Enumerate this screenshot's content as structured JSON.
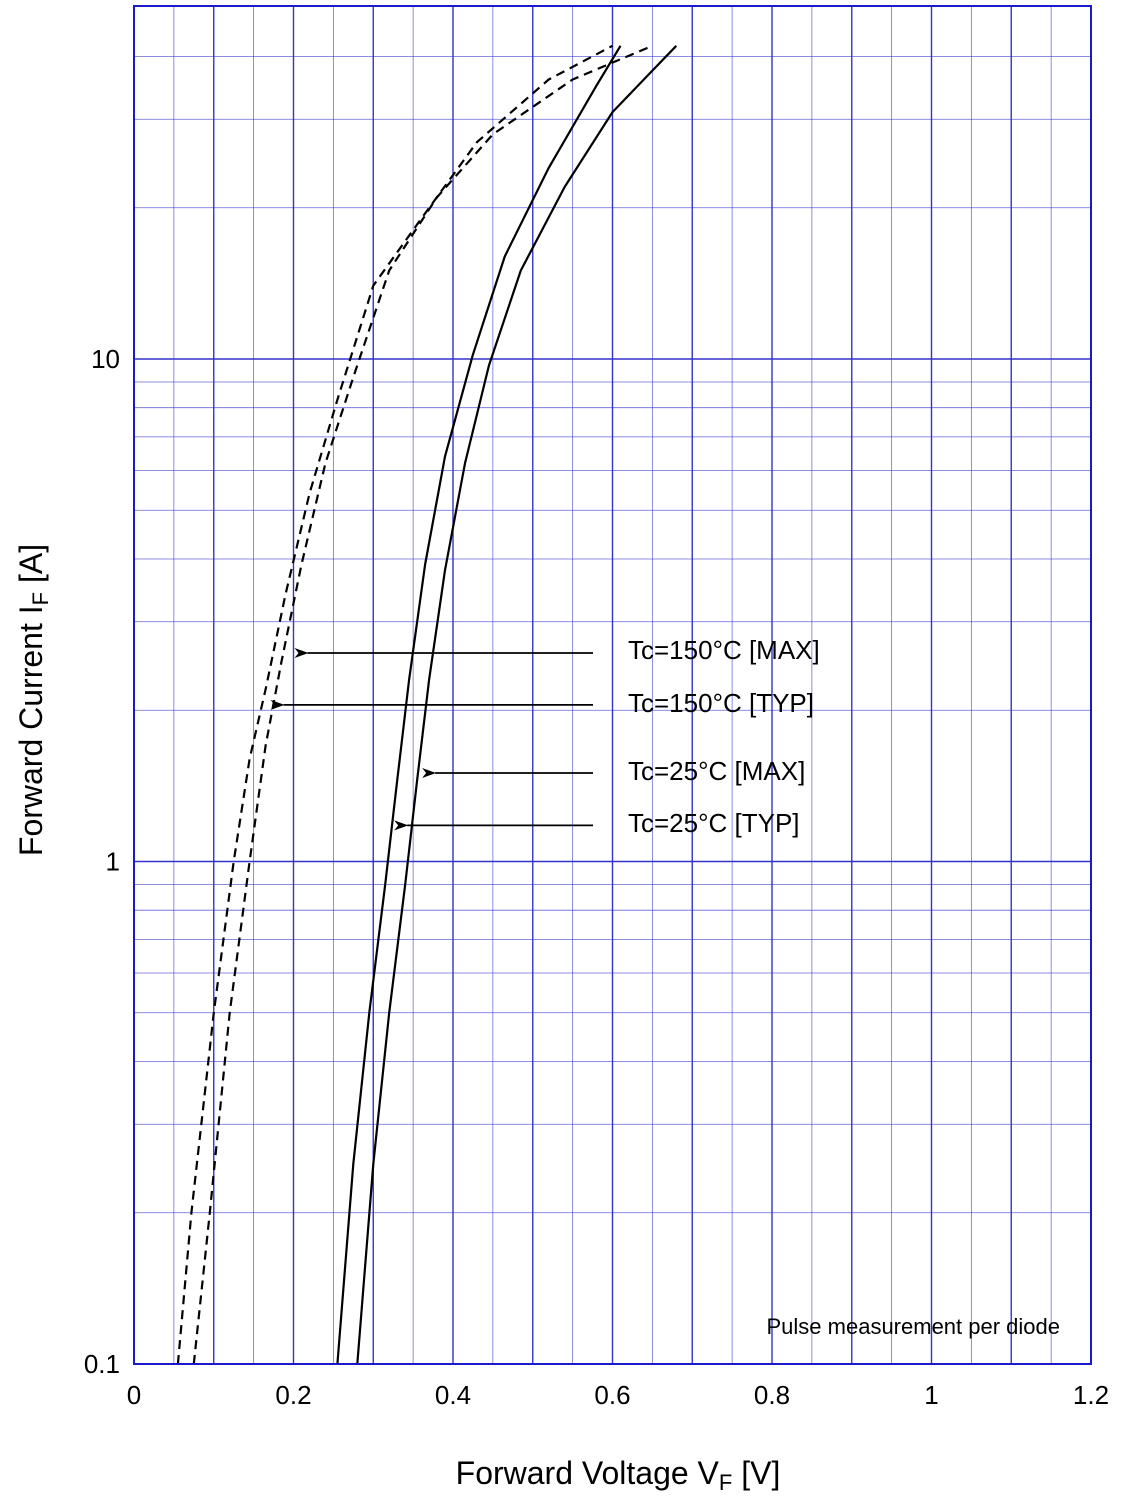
{
  "chart_data": {
    "type": "line",
    "xlabel": "Forward Voltage  V",
    "xlabel_sub": "F",
    "xlabel_unit": " [V]",
    "ylabel": "Forward Current  I",
    "ylabel_sub": "F",
    "ylabel_unit": " [A]",
    "xlim": [
      0,
      1.2
    ],
    "ylim": [
      0.1,
      40
    ],
    "y_scale": "log",
    "grid": true,
    "grid_color": "#3333cc",
    "line_color": "#000000",
    "x_ticks": [
      "0",
      "0.2",
      "0.4",
      "0.6",
      "0.8",
      "1",
      "1.2"
    ],
    "y_ticks": [
      {
        "value": 0.1,
        "label": "0.1"
      },
      {
        "value": 1,
        "label": "1"
      },
      {
        "value": 10,
        "label": "10"
      }
    ],
    "note": "Pulse measurement per diode",
    "series": [
      {
        "name": "Tc=150°C [MAX]",
        "style": "dashed",
        "points": [
          [
            0.075,
            0.1
          ],
          [
            0.095,
            0.2
          ],
          [
            0.12,
            0.5
          ],
          [
            0.145,
            1.0
          ],
          [
            0.165,
            1.7
          ],
          [
            0.185,
            2.5
          ],
          [
            0.21,
            3.9
          ],
          [
            0.24,
            6.2
          ],
          [
            0.275,
            9.2
          ],
          [
            0.32,
            15
          ],
          [
            0.38,
            21
          ],
          [
            0.45,
            28
          ],
          [
            0.55,
            36
          ],
          [
            0.65,
            42
          ]
        ]
      },
      {
        "name": "Tc=150°C [TYP]",
        "style": "dashed",
        "points": [
          [
            0.055,
            0.1
          ],
          [
            0.072,
            0.2
          ],
          [
            0.1,
            0.5
          ],
          [
            0.125,
            1.0
          ],
          [
            0.145,
            1.6
          ],
          [
            0.165,
            2.2
          ],
          [
            0.19,
            3.4
          ],
          [
            0.22,
            5.4
          ],
          [
            0.255,
            8.3
          ],
          [
            0.3,
            14
          ],
          [
            0.36,
            19
          ],
          [
            0.43,
            27
          ],
          [
            0.52,
            36
          ],
          [
            0.6,
            42
          ]
        ]
      },
      {
        "name": "Tc=25°C [MAX]",
        "style": "solid",
        "points": [
          [
            0.28,
            0.1
          ],
          [
            0.3,
            0.25
          ],
          [
            0.32,
            0.5
          ],
          [
            0.34,
            0.9
          ],
          [
            0.355,
            1.45
          ],
          [
            0.37,
            2.3
          ],
          [
            0.39,
            3.8
          ],
          [
            0.415,
            6.2
          ],
          [
            0.445,
            9.7
          ],
          [
            0.485,
            15
          ],
          [
            0.54,
            22
          ],
          [
            0.6,
            31
          ],
          [
            0.68,
            42
          ]
        ]
      },
      {
        "name": "Tc=25°C [TYP]",
        "style": "solid",
        "points": [
          [
            0.255,
            0.1
          ],
          [
            0.275,
            0.25
          ],
          [
            0.295,
            0.5
          ],
          [
            0.315,
            0.9
          ],
          [
            0.33,
            1.45
          ],
          [
            0.345,
            2.3
          ],
          [
            0.365,
            3.9
          ],
          [
            0.39,
            6.4
          ],
          [
            0.425,
            10.2
          ],
          [
            0.465,
            16
          ],
          [
            0.52,
            24
          ],
          [
            0.58,
            35
          ],
          [
            0.61,
            42
          ]
        ]
      }
    ],
    "annotations": [
      {
        "label": "Tc=150°C [MAX]",
        "arrow_to": [
          0.2,
          2.6
        ]
      },
      {
        "label": "Tc=150°C [TYP]",
        "arrow_to": [
          0.17,
          2.05
        ]
      },
      {
        "label": "Tc=25°C [MAX]",
        "arrow_to": [
          0.36,
          1.5
        ]
      },
      {
        "label": "Tc=25°C [TYP]",
        "arrow_to": [
          0.325,
          1.18
        ]
      }
    ]
  }
}
